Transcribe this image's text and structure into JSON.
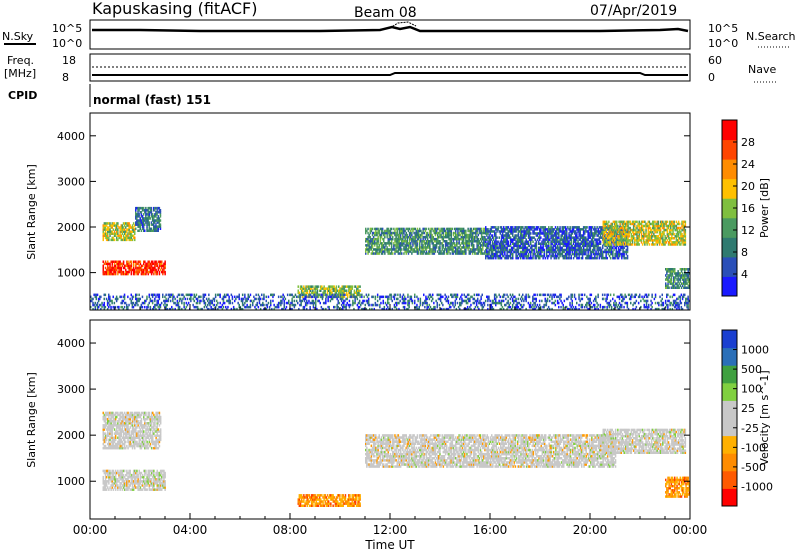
{
  "header": {
    "station": "Kapuskasing (fitACF)",
    "beam": "Beam 08",
    "date": "07/Apr/2019"
  },
  "noise_panel": {
    "left_label": "N.Sky",
    "right_label": "N.Search",
    "left_ticks": [
      "10^5",
      "10^0"
    ],
    "right_ticks": [
      "10^5",
      "10^0"
    ]
  },
  "freq_panel": {
    "label_line1": "Freq.",
    "label_line2": "[MHz]",
    "left_ticks": [
      "18",
      "8"
    ],
    "right_ticks": [
      "60",
      "0"
    ],
    "right_label": "Nave",
    "cpid_label": "CPID",
    "cpid_value": "normal (fast) 151"
  },
  "colors": {
    "power_scale": [
      "#1a1aff",
      "#2a4fb8",
      "#2f7a70",
      "#4a9a60",
      "#7fbf3f",
      "#ffc000",
      "#ff8c00",
      "#ff4500",
      "#ff0000"
    ],
    "velocity_scale": [
      "#ff0000",
      "#ff5a00",
      "#ff8c00",
      "#ffb000",
      "#c8c8c8",
      "#c8c8c8",
      "#80d040",
      "#3fa040",
      "#2a6fb8",
      "#1a3fd0"
    ]
  },
  "chart_data": [
    {
      "type": "heatmap",
      "panel": "power",
      "ylabel": "Slant Range [km]",
      "ylim": [
        180,
        4500
      ],
      "y_ticks": [
        "1000",
        "2000",
        "3000",
        "4000"
      ],
      "xlim_hours": [
        0,
        24
      ],
      "colorbar_label": "Power [dB]",
      "colorbar_ticks": [
        "4",
        "8",
        "12",
        "16",
        "20",
        "24",
        "28"
      ],
      "regions": [
        {
          "t0": 0.5,
          "t1": 3.0,
          "r0": 950,
          "r1": 1250,
          "value": 28
        },
        {
          "t0": 0.5,
          "t1": 1.8,
          "r0": 1700,
          "r1": 2100,
          "value": 18
        },
        {
          "t0": 1.8,
          "t1": 2.8,
          "r0": 1900,
          "r1": 2400,
          "value": 10
        },
        {
          "t0": 8.3,
          "t1": 10.8,
          "r0": 450,
          "r1": 700,
          "value": 16
        },
        {
          "t0": 11.0,
          "t1": 15.8,
          "r0": 1400,
          "r1": 1950,
          "value": 12
        },
        {
          "t0": 15.8,
          "t1": 21.5,
          "r0": 1300,
          "r1": 2000,
          "value": 8
        },
        {
          "t0": 20.5,
          "t1": 23.8,
          "r0": 1600,
          "r1": 2100,
          "value": 18
        },
        {
          "t0": 23.0,
          "t1": 24.0,
          "r0": 650,
          "r1": 1100,
          "value": 12
        },
        {
          "t0": 0.0,
          "t1": 24.0,
          "r0": 180,
          "r1": 500,
          "value": 8
        }
      ]
    },
    {
      "type": "heatmap",
      "panel": "velocity",
      "ylabel": "Slant Range [km]",
      "ylim": [
        180,
        4500
      ],
      "y_ticks": [
        "1000",
        "2000",
        "3000",
        "4000"
      ],
      "x_ticks": [
        "00:00",
        "04:00",
        "08:00",
        "12:00",
        "16:00",
        "20:00",
        "00:00"
      ],
      "xlabel": "Time UT",
      "xlim_hours": [
        0,
        24
      ],
      "colorbar_label": "Velocity [m s^-1]",
      "colorbar_ticks": [
        "-1000",
        "-500",
        "-100",
        "-25",
        "25",
        "100",
        "500",
        "1000"
      ],
      "regions": [
        {
          "t0": 0.5,
          "t1": 3.0,
          "r0": 800,
          "r1": 1250,
          "value": 0
        },
        {
          "t0": 0.5,
          "t1": 2.8,
          "r0": 1700,
          "r1": 2500,
          "value": 0
        },
        {
          "t0": 8.3,
          "t1": 10.8,
          "r0": 450,
          "r1": 700,
          "value": -100
        },
        {
          "t0": 11.0,
          "t1": 21.0,
          "r0": 1300,
          "r1": 2000,
          "value": 0
        },
        {
          "t0": 20.5,
          "t1": 23.8,
          "r0": 1600,
          "r1": 2100,
          "value": 0
        },
        {
          "t0": 23.0,
          "t1": 24.0,
          "r0": 650,
          "r1": 1100,
          "value": -300
        }
      ]
    }
  ]
}
